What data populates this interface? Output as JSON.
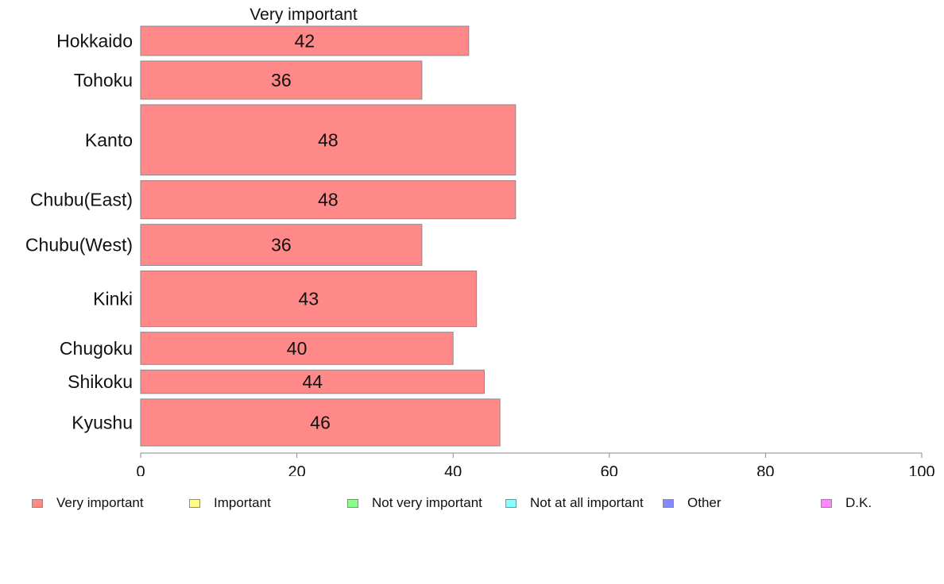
{
  "chart_data": {
    "type": "bar",
    "orientation": "horizontal",
    "title": "Very important",
    "categories": [
      "Hokkaido",
      "Tohoku",
      "Kanto",
      "Chubu(East)",
      "Chubu(West)",
      "Kinki",
      "Chugoku",
      "Shikoku",
      "Kyushu"
    ],
    "series": [
      {
        "name": "Very important",
        "values": [
          42,
          36,
          48,
          48,
          36,
          43,
          40,
          44,
          46
        ],
        "color": "#ff8888"
      }
    ],
    "bar_weights": [
      1.0,
      1.3,
      2.4,
      1.3,
      1.4,
      1.9,
      1.1,
      0.8,
      1.6
    ],
    "xlim": [
      0,
      100
    ],
    "xticks": [
      0,
      20,
      40,
      60,
      80,
      100
    ],
    "grid": false,
    "legend_position": "bottom",
    "legend": [
      {
        "label": "Very important",
        "color": "#ff8888"
      },
      {
        "label": "Important",
        "color": "#ffff88"
      },
      {
        "label": "Not very important",
        "color": "#88ff88"
      },
      {
        "label": "Not at all important",
        "color": "#88ffff"
      },
      {
        "label": "Other",
        "color": "#8888ff"
      },
      {
        "label": "D.K.",
        "color": "#ff88ff"
      }
    ]
  }
}
